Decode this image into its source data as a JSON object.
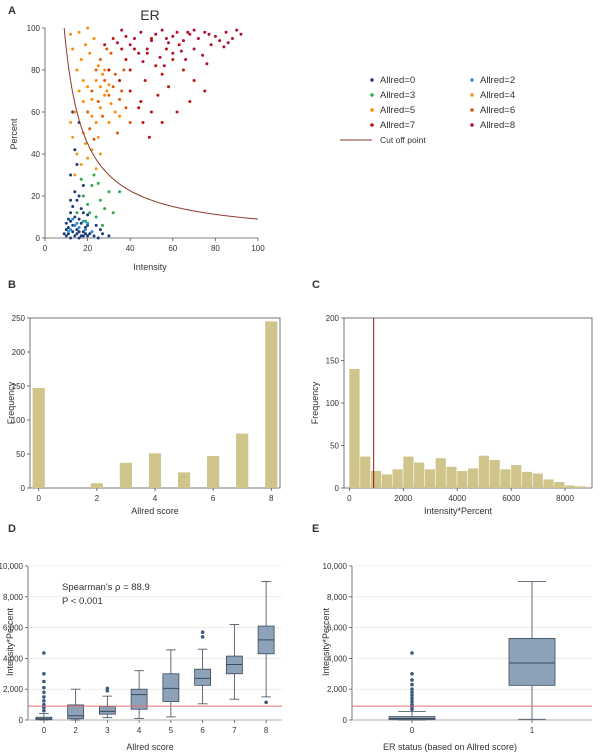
{
  "colors": {
    "allred0": "#1f3d7a",
    "allred2": "#2e8fd8",
    "allred3": "#2fa84f",
    "allred4": "#f09a1a",
    "allred5": "#ff8c00",
    "allred6": "#e05a10",
    "allred7": "#c01010",
    "allred8": "#b01030",
    "curve": "#8b3a2a",
    "bar": "#cfc48a",
    "box": "#8da2b8",
    "cutline": "#e07070"
  },
  "chart_data": [
    {
      "panel": "A",
      "type": "scatter",
      "title": "ER",
      "xlabel": "Intensity",
      "ylabel": "Percent",
      "xlim": [
        0,
        100
      ],
      "ylim": [
        0,
        100
      ],
      "xticks": [
        "0",
        "20",
        "40",
        "60",
        "80",
        "100"
      ],
      "yticks": [
        "0",
        "20",
        "40",
        "60",
        "80",
        "100"
      ],
      "legend": [
        "Allred=0",
        "Allred=2",
        "Allred=3",
        "Allred=4",
        "Allred=5",
        "Allred=6",
        "Allred=7",
        "Allred=8",
        "Cut off point"
      ],
      "cutoff_curve": {
        "formula": "Intensity*Percent = 900"
      },
      "series": [
        {
          "name": "Allred=0",
          "points": [
            [
              10,
              1
            ],
            [
              11,
              2
            ],
            [
              12,
              0
            ],
            [
              13,
              3
            ],
            [
              14,
              1
            ],
            [
              15,
              2
            ],
            [
              16,
              0
            ],
            [
              17,
              1
            ],
            [
              18,
              3
            ],
            [
              19,
              2
            ],
            [
              20,
              1
            ],
            [
              11,
              5
            ],
            [
              13,
              6
            ],
            [
              15,
              4
            ],
            [
              17,
              7
            ],
            [
              19,
              5
            ],
            [
              21,
              2
            ],
            [
              23,
              1
            ],
            [
              25,
              0
            ],
            [
              12,
              8
            ],
            [
              14,
              10
            ],
            [
              16,
              9
            ],
            [
              18,
              12
            ],
            [
              20,
              11
            ],
            [
              13,
              15
            ],
            [
              15,
              18
            ],
            [
              17,
              14
            ],
            [
              14,
              22
            ],
            [
              16,
              20
            ],
            [
              18,
              25
            ],
            [
              12,
              30
            ],
            [
              15,
              35
            ],
            [
              13,
              60
            ],
            [
              16,
              55
            ],
            [
              14,
              42
            ],
            [
              22,
              3
            ],
            [
              24,
              6
            ],
            [
              27,
              2
            ],
            [
              30,
              1
            ],
            [
              12,
              12
            ],
            [
              10,
              4
            ],
            [
              9,
              2
            ],
            [
              11,
              9
            ],
            [
              20,
              6
            ],
            [
              26,
              4
            ],
            [
              18,
              1
            ],
            [
              16,
              3
            ],
            [
              14,
              6
            ],
            [
              10,
              7
            ],
            [
              12,
              18
            ]
          ]
        },
        {
          "name": "Allred=2",
          "points": [
            [
              12,
              4
            ],
            [
              14,
              6
            ],
            [
              16,
              5
            ],
            [
              18,
              8
            ],
            [
              20,
              7
            ],
            [
              22,
              3
            ],
            [
              11,
              3
            ],
            [
              13,
              9
            ],
            [
              19,
              4
            ],
            [
              15,
              7
            ]
          ]
        },
        {
          "name": "Allred=3",
          "points": [
            [
              15,
              12
            ],
            [
              18,
              20
            ],
            [
              20,
              16
            ],
            [
              22,
              25
            ],
            [
              24,
              10
            ],
            [
              26,
              18
            ],
            [
              28,
              14
            ],
            [
              30,
              22
            ],
            [
              17,
              28
            ],
            [
              19,
              8
            ],
            [
              23,
              30
            ],
            [
              25,
              26
            ],
            [
              35,
              22
            ],
            [
              32,
              12
            ],
            [
              21,
              12
            ],
            [
              27,
              6
            ]
          ]
        },
        {
          "name": "Allred=4",
          "points": [
            [
              15,
              40
            ],
            [
              17,
              35
            ],
            [
              19,
              45
            ],
            [
              20,
              38
            ],
            [
              22,
              42
            ],
            [
              24,
              33
            ],
            [
              18,
              50
            ],
            [
              14,
              30
            ],
            [
              13,
              48
            ],
            [
              12,
              55
            ],
            [
              25,
              48
            ],
            [
              26,
              40
            ]
          ]
        },
        {
          "name": "Allred=5",
          "points": [
            [
              14,
              60
            ],
            [
              16,
              70
            ],
            [
              18,
              65
            ],
            [
              20,
              72
            ],
            [
              22,
              58
            ],
            [
              24,
              75
            ],
            [
              26,
              62
            ],
            [
              28,
              68
            ],
            [
              30,
              55
            ],
            [
              17,
              85
            ],
            [
              19,
              92
            ],
            [
              21,
              88
            ],
            [
              15,
              80
            ],
            [
              13,
              90
            ],
            [
              12,
              97
            ],
            [
              23,
              95
            ],
            [
              25,
              82
            ],
            [
              27,
              78
            ],
            [
              29,
              70
            ],
            [
              31,
              64
            ],
            [
              33,
              60
            ],
            [
              35,
              58
            ],
            [
              16,
              98
            ],
            [
              20,
              100
            ],
            [
              18,
              75
            ],
            [
              22,
              66
            ],
            [
              24,
              55
            ],
            [
              26,
              72
            ],
            [
              28,
              80
            ],
            [
              30,
              73
            ]
          ]
        },
        {
          "name": "Allred=6",
          "points": [
            [
              20,
              60
            ],
            [
              22,
              70
            ],
            [
              25,
              65
            ],
            [
              28,
              75
            ],
            [
              30,
              68
            ],
            [
              32,
              72
            ],
            [
              35,
              66
            ],
            [
              24,
              80
            ],
            [
              26,
              85
            ],
            [
              29,
              90
            ],
            [
              31,
              88
            ],
            [
              33,
              78
            ],
            [
              36,
              70
            ],
            [
              38,
              62
            ],
            [
              27,
              58
            ],
            [
              21,
              52
            ],
            [
              23,
              47
            ],
            [
              34,
              50
            ],
            [
              40,
              55
            ],
            [
              37,
              80
            ]
          ]
        },
        {
          "name": "Allred=7",
          "points": [
            [
              30,
              80
            ],
            [
              35,
              75
            ],
            [
              40,
              70
            ],
            [
              45,
              65
            ],
            [
              50,
              60
            ],
            [
              38,
              85
            ],
            [
              42,
              90
            ],
            [
              48,
              88
            ],
            [
              52,
              82
            ],
            [
              55,
              78
            ],
            [
              58,
              72
            ],
            [
              60,
              85
            ],
            [
              65,
              80
            ],
            [
              70,
              75
            ],
            [
              44,
              62
            ],
            [
              46,
              55
            ],
            [
              49,
              48
            ],
            [
              55,
              55
            ],
            [
              62,
              60
            ],
            [
              68,
              65
            ],
            [
              75,
              70
            ],
            [
              40,
              80
            ],
            [
              36,
              90
            ],
            [
              32,
              95
            ],
            [
              28,
              92
            ],
            [
              47,
              75
            ],
            [
              53,
              68
            ],
            [
              57,
              90
            ],
            [
              63,
              92
            ],
            [
              50,
              95
            ]
          ]
        },
        {
          "name": "Allred=8",
          "points": [
            [
              40,
              92
            ],
            [
              42,
              95
            ],
            [
              45,
              98
            ],
            [
              48,
              90
            ],
            [
              50,
              94
            ],
            [
              52,
              97
            ],
            [
              55,
              99
            ],
            [
              58,
              93
            ],
            [
              60,
              96
            ],
            [
              62,
              98
            ],
            [
              65,
              94
            ],
            [
              68,
              97
            ],
            [
              70,
              99
            ],
            [
              72,
              95
            ],
            [
              75,
              98
            ],
            [
              78,
              92
            ],
            [
              80,
              96
            ],
            [
              85,
              98
            ],
            [
              88,
              95
            ],
            [
              90,
              99
            ],
            [
              44,
              88
            ],
            [
              54,
              86
            ],
            [
              64,
              89
            ],
            [
              74,
              87
            ],
            [
              84,
              91
            ],
            [
              46,
              84
            ],
            [
              56,
              82
            ],
            [
              66,
              85
            ],
            [
              76,
              83
            ],
            [
              82,
              94
            ],
            [
              38,
              96
            ],
            [
              36,
              99
            ],
            [
              34,
              93
            ],
            [
              60,
              88
            ],
            [
              70,
              90
            ],
            [
              92,
              97
            ],
            [
              86,
              93
            ],
            [
              57,
              95
            ],
            [
              67,
              98
            ],
            [
              77,
              97
            ]
          ]
        }
      ]
    },
    {
      "panel": "B",
      "type": "bar",
      "xlabel": "Allred score",
      "ylabel": "Frequency",
      "xlim": [
        -0.3,
        8.3
      ],
      "ylim": [
        0,
        250
      ],
      "xticks": [
        "0",
        "2",
        "4",
        "6",
        "8"
      ],
      "yticks": [
        "0",
        "50",
        "100",
        "150",
        "200",
        "250"
      ],
      "categories": [
        0,
        2,
        3,
        4,
        5,
        6,
        7,
        8
      ],
      "values": [
        147,
        7,
        37,
        51,
        23,
        47,
        80,
        245
      ]
    },
    {
      "panel": "C",
      "type": "bar",
      "xlabel": "Intensity*Percent",
      "ylabel": "Frequency",
      "xlim": [
        -200,
        9000
      ],
      "ylim": [
        0,
        200
      ],
      "xticks": [
        "0",
        "2000",
        "4000",
        "6000",
        "8000"
      ],
      "yticks": [
        "0",
        "50",
        "100",
        "150",
        "200"
      ],
      "cutoff": 900,
      "bin_width": 400,
      "bins": [
        0,
        400,
        800,
        1200,
        1600,
        2000,
        2400,
        2800,
        3200,
        3600,
        4000,
        4400,
        4800,
        5200,
        5600,
        6000,
        6400,
        6800,
        7200,
        7600,
        8000,
        8400
      ],
      "values": [
        140,
        37,
        20,
        16,
        22,
        37,
        30,
        22,
        35,
        25,
        20,
        23,
        38,
        33,
        22,
        27,
        19,
        17,
        10,
        7,
        3,
        2
      ]
    },
    {
      "panel": "D",
      "type": "box",
      "xlabel": "Allred score",
      "ylabel": "Intensity*Percent",
      "ylim": [
        0,
        10000
      ],
      "yticks": [
        "0",
        "2,000",
        "4,000",
        "6,000",
        "8,000",
        "10,000"
      ],
      "cutoff": 900,
      "annotations": [
        "Spearman's ρ = 88.9",
        "P < 0.001"
      ],
      "categories": [
        "0",
        "2",
        "3",
        "4",
        "5",
        "6",
        "7",
        "8"
      ],
      "boxes": [
        {
          "min": 0,
          "q1": 20,
          "median": 80,
          "q3": 180,
          "max": 420,
          "outliers": [
            600,
            800,
            1000,
            1250,
            1500,
            1800,
            2100,
            2500,
            3000,
            4350
          ]
        },
        {
          "min": 0,
          "q1": 80,
          "median": 280,
          "q3": 980,
          "max": 2000,
          "outliers": []
        },
        {
          "min": 150,
          "q1": 380,
          "median": 560,
          "q3": 880,
          "max": 1550,
          "outliers": [
            1900,
            2050
          ]
        },
        {
          "min": 100,
          "q1": 700,
          "median": 1650,
          "q3": 2000,
          "max": 3200,
          "outliers": []
        },
        {
          "min": 200,
          "q1": 1200,
          "median": 2050,
          "q3": 3000,
          "max": 4550,
          "outliers": []
        },
        {
          "min": 1050,
          "q1": 2250,
          "median": 2700,
          "q3": 3300,
          "max": 4600,
          "outliers": [
            5400,
            5700
          ]
        },
        {
          "min": 1350,
          "q1": 3000,
          "median": 3600,
          "q3": 4150,
          "max": 6200,
          "outliers": []
        },
        {
          "min": 1500,
          "q1": 4300,
          "median": 5200,
          "q3": 6100,
          "max": 9000,
          "outliers": [
            1150
          ]
        }
      ]
    },
    {
      "panel": "E",
      "type": "box",
      "xlabel": "ER status (based on Allred score)",
      "ylabel": "Intensity*Percent",
      "ylim": [
        0,
        10000
      ],
      "yticks": [
        "0",
        "2,000",
        "4,000",
        "6,000",
        "8,000",
        "10,000"
      ],
      "cutoff": 900,
      "categories": [
        "0",
        "1"
      ],
      "boxes": [
        {
          "min": 0,
          "q1": 20,
          "median": 100,
          "q3": 220,
          "max": 550,
          "outliers": [
            700,
            850,
            1000,
            1200,
            1400,
            1600,
            1800,
            2000,
            2300,
            2600,
            3000,
            4350
          ]
        },
        {
          "min": 50,
          "q1": 2250,
          "median": 3700,
          "q3": 5300,
          "max": 9000,
          "outliers": []
        }
      ]
    }
  ]
}
